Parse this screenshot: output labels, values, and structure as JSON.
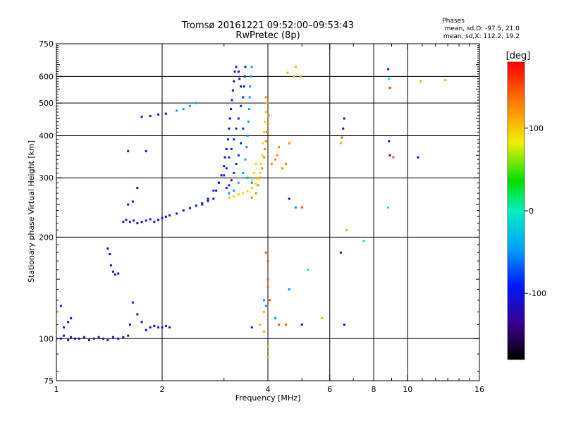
{
  "chart_data": {
    "type": "scatter",
    "title": "Tromsø 20161221 09:52:00–09:53:43",
    "subtitle": "RwPretec (8p)",
    "xlabel": "Frequency [MHz]",
    "ylabel": "Stationary phase Virtual Height [km]",
    "x_scale": "log",
    "y_scale": "log",
    "xlim": [
      1,
      16
    ],
    "ylim": [
      75,
      750
    ],
    "x_ticks": [
      1,
      2,
      4,
      6,
      8,
      10,
      16
    ],
    "x_tick_labels": [
      "1",
      "2",
      "4",
      "6",
      "8",
      "10",
      "16"
    ],
    "x_gridlines": [
      2,
      4,
      6,
      8,
      10
    ],
    "x_minor_ticks": [
      3,
      5,
      7,
      9,
      11,
      12,
      13,
      14,
      15
    ],
    "y_ticks": [
      75,
      100,
      200,
      300,
      400,
      500,
      600,
      750
    ],
    "y_tick_labels": [
      "75",
      "100",
      "200",
      "300",
      "400",
      "500",
      "600",
      "750"
    ],
    "y_gridlines": [
      100,
      200,
      300,
      400,
      500,
      600
    ],
    "grid": true,
    "legend": {
      "title": "Phases",
      "lines": [
        "mean, sd,O: -97.5, 21.0",
        "mean, sd,X: 112.2, 19.2"
      ],
      "placement": "top-right"
    },
    "colorbar": {
      "label": "[deg]",
      "range": [
        -180,
        180
      ],
      "ticks": [
        100,
        0,
        -100
      ],
      "tick_labels": [
        "100",
        "0",
        "-100"
      ],
      "colormap": "rainbow"
    },
    "series": [
      {
        "phase": -110,
        "points": [
          [
            1.0,
            100
          ],
          [
            1.03,
            100
          ],
          [
            1.05,
            102
          ],
          [
            1.08,
            99
          ],
          [
            1.1,
            101
          ],
          [
            1.13,
            100
          ],
          [
            1.16,
            100
          ],
          [
            1.2,
            101
          ],
          [
            1.24,
            99
          ],
          [
            1.28,
            100
          ],
          [
            1.32,
            101
          ],
          [
            1.36,
            100
          ],
          [
            1.4,
            99
          ],
          [
            1.45,
            101
          ],
          [
            1.5,
            100
          ],
          [
            1.55,
            101
          ],
          [
            1.6,
            102
          ],
          [
            1.05,
            108
          ],
          [
            1.08,
            112
          ],
          [
            1.1,
            115
          ],
          [
            1.03,
            125
          ],
          [
            1.62,
            110
          ],
          [
            1.65,
            128
          ],
          [
            1.7,
            118
          ],
          [
            1.75,
            112
          ],
          [
            1.8,
            106
          ],
          [
            1.85,
            108
          ],
          [
            1.9,
            109
          ],
          [
            1.95,
            108
          ],
          [
            2.0,
            108
          ],
          [
            2.05,
            109
          ],
          [
            2.1,
            108
          ],
          [
            1.4,
            185
          ],
          [
            1.42,
            178
          ],
          [
            1.43,
            165
          ],
          [
            1.45,
            158
          ],
          [
            1.47,
            155
          ],
          [
            1.5,
            156
          ]
        ]
      },
      {
        "phase": -110,
        "points": [
          [
            1.55,
            222
          ],
          [
            1.58,
            225
          ],
          [
            1.62,
            222
          ],
          [
            1.66,
            224
          ],
          [
            1.7,
            220
          ],
          [
            1.75,
            222
          ],
          [
            1.8,
            224
          ],
          [
            1.85,
            226
          ],
          [
            1.9,
            222
          ],
          [
            1.95,
            225
          ],
          [
            2.0,
            228
          ],
          [
            2.05,
            230
          ],
          [
            2.1,
            232
          ],
          [
            2.2,
            235
          ],
          [
            2.3,
            240
          ],
          [
            2.4,
            244
          ],
          [
            2.5,
            248
          ],
          [
            2.6,
            252
          ],
          [
            2.7,
            256
          ],
          [
            1.75,
            455
          ],
          [
            1.85,
            458
          ],
          [
            1.95,
            462
          ],
          [
            2.05,
            465
          ],
          [
            1.6,
            360
          ],
          [
            1.8,
            360
          ],
          [
            1.7,
            280
          ],
          [
            1.65,
            255
          ],
          [
            1.6,
            250
          ]
        ]
      },
      {
        "phase": -110,
        "points": [
          [
            2.8,
            260
          ],
          [
            2.85,
            275
          ],
          [
            2.9,
            290
          ],
          [
            2.95,
            305
          ],
          [
            3.0,
            325
          ],
          [
            3.02,
            345
          ],
          [
            3.05,
            365
          ],
          [
            3.08,
            390
          ],
          [
            3.1,
            420
          ],
          [
            3.12,
            450
          ],
          [
            3.14,
            480
          ],
          [
            3.16,
            510
          ],
          [
            3.18,
            545
          ],
          [
            3.2,
            580
          ],
          [
            3.22,
            620
          ],
          [
            3.25,
            640
          ],
          [
            3.3,
            620
          ],
          [
            3.32,
            590
          ],
          [
            3.35,
            560
          ]
        ]
      },
      {
        "phase": -85,
        "points": [
          [
            2.6,
            250
          ],
          [
            2.7,
            260
          ],
          [
            2.8,
            275
          ],
          [
            2.9,
            290
          ],
          [
            3.0,
            305
          ],
          [
            3.05,
            320
          ],
          [
            3.1,
            345
          ],
          [
            3.15,
            365
          ],
          [
            3.2,
            390
          ],
          [
            3.25,
            420
          ],
          [
            3.3,
            450
          ],
          [
            3.35,
            490
          ],
          [
            3.4,
            520
          ],
          [
            3.42,
            560
          ],
          [
            3.44,
            600
          ],
          [
            3.45,
            640
          ],
          [
            3.4,
            420
          ],
          [
            3.35,
            380
          ],
          [
            3.3,
            350
          ],
          [
            3.25,
            330
          ],
          [
            3.2,
            310
          ],
          [
            3.15,
            295
          ],
          [
            3.1,
            285
          ],
          [
            3.05,
            280
          ]
        ]
      },
      {
        "phase": -45,
        "points": [
          [
            3.2,
            275
          ],
          [
            3.3,
            290
          ],
          [
            3.4,
            310
          ],
          [
            3.45,
            340
          ],
          [
            3.48,
            370
          ],
          [
            3.5,
            400
          ],
          [
            3.52,
            440
          ],
          [
            3.54,
            480
          ],
          [
            3.55,
            520
          ],
          [
            3.56,
            560
          ],
          [
            3.58,
            600
          ],
          [
            3.6,
            640
          ],
          [
            3.5,
            300
          ],
          [
            3.6,
            290
          ],
          [
            3.1,
            270
          ],
          [
            2.5,
            500
          ],
          [
            2.4,
            490
          ],
          [
            2.3,
            480
          ],
          [
            2.2,
            475
          ]
        ]
      },
      {
        "phase": 95,
        "points": [
          [
            3.1,
            262
          ],
          [
            3.2,
            264
          ],
          [
            3.3,
            268
          ],
          [
            3.4,
            270
          ],
          [
            3.5,
            274
          ],
          [
            3.6,
            280
          ],
          [
            3.7,
            288
          ],
          [
            3.75,
            298
          ],
          [
            3.8,
            310
          ],
          [
            3.82,
            330
          ],
          [
            3.85,
            350
          ],
          [
            3.87,
            380
          ],
          [
            3.9,
            410
          ],
          [
            3.92,
            440
          ],
          [
            3.95,
            470
          ],
          [
            3.97,
            500
          ],
          [
            3.6,
            295
          ],
          [
            3.65,
            310
          ],
          [
            3.7,
            330
          ]
        ]
      },
      {
        "phase": 125,
        "points": [
          [
            3.6,
            262
          ],
          [
            3.7,
            270
          ],
          [
            3.75,
            285
          ],
          [
            3.8,
            300
          ],
          [
            3.85,
            320
          ],
          [
            3.9,
            345
          ],
          [
            3.92,
            365
          ],
          [
            3.95,
            385
          ],
          [
            3.97,
            410
          ],
          [
            4.0,
            435
          ],
          [
            4.02,
            460
          ],
          [
            4.0,
            500
          ],
          [
            3.95,
            520
          ],
          [
            4.1,
            330
          ],
          [
            4.2,
            340
          ],
          [
            4.25,
            350
          ],
          [
            4.3,
            370
          ],
          [
            4.4,
            320
          ],
          [
            4.5,
            330
          ],
          [
            4.6,
            380
          ]
        ]
      },
      {
        "phase": 110,
        "points": [
          [
            4.55,
            615
          ],
          [
            4.75,
            600
          ],
          [
            4.95,
            600
          ],
          [
            4.8,
            640
          ],
          [
            4.0,
            95
          ],
          [
            4.0,
            88
          ],
          [
            3.9,
            105
          ],
          [
            3.8,
            110
          ],
          [
            3.9,
            120
          ],
          [
            5.7,
            115
          ],
          [
            6.45,
            380
          ],
          [
            6.7,
            210
          ],
          [
            10.9,
            580
          ],
          [
            12.8,
            585
          ]
        ]
      },
      {
        "phase": 145,
        "points": [
          [
            3.95,
            180
          ],
          [
            4.0,
            170
          ],
          [
            4.0,
            150
          ],
          [
            4.0,
            142
          ],
          [
            4.5,
            110
          ],
          [
            6.5,
            395
          ],
          [
            9.1,
            345
          ],
          [
            4.3,
            110
          ]
        ]
      },
      {
        "phase": -100,
        "points": [
          [
            6.45,
            180
          ],
          [
            6.6,
            110
          ],
          [
            6.6,
            450
          ],
          [
            6.55,
            420
          ],
          [
            8.85,
            385
          ],
          [
            8.9,
            350
          ],
          [
            10.7,
            345
          ],
          [
            8.8,
            630
          ],
          [
            3.6,
            108
          ],
          [
            4.6,
            260
          ],
          [
            5.0,
            110
          ]
        ]
      },
      {
        "phase": -50,
        "points": [
          [
            4.6,
            140
          ],
          [
            4.8,
            245
          ],
          [
            3.9,
            130
          ],
          [
            3.95,
            125
          ],
          [
            4.2,
            115
          ]
        ]
      },
      {
        "phase": 5,
        "points": [
          [
            7.5,
            195
          ],
          [
            8.8,
            245
          ],
          [
            5.2,
            160
          ],
          [
            8.85,
            590
          ]
        ]
      },
      {
        "phase": 150,
        "points": [
          [
            8.9,
            555
          ],
          [
            4.05,
            130
          ],
          [
            5.0,
            245
          ]
        ]
      }
    ]
  }
}
